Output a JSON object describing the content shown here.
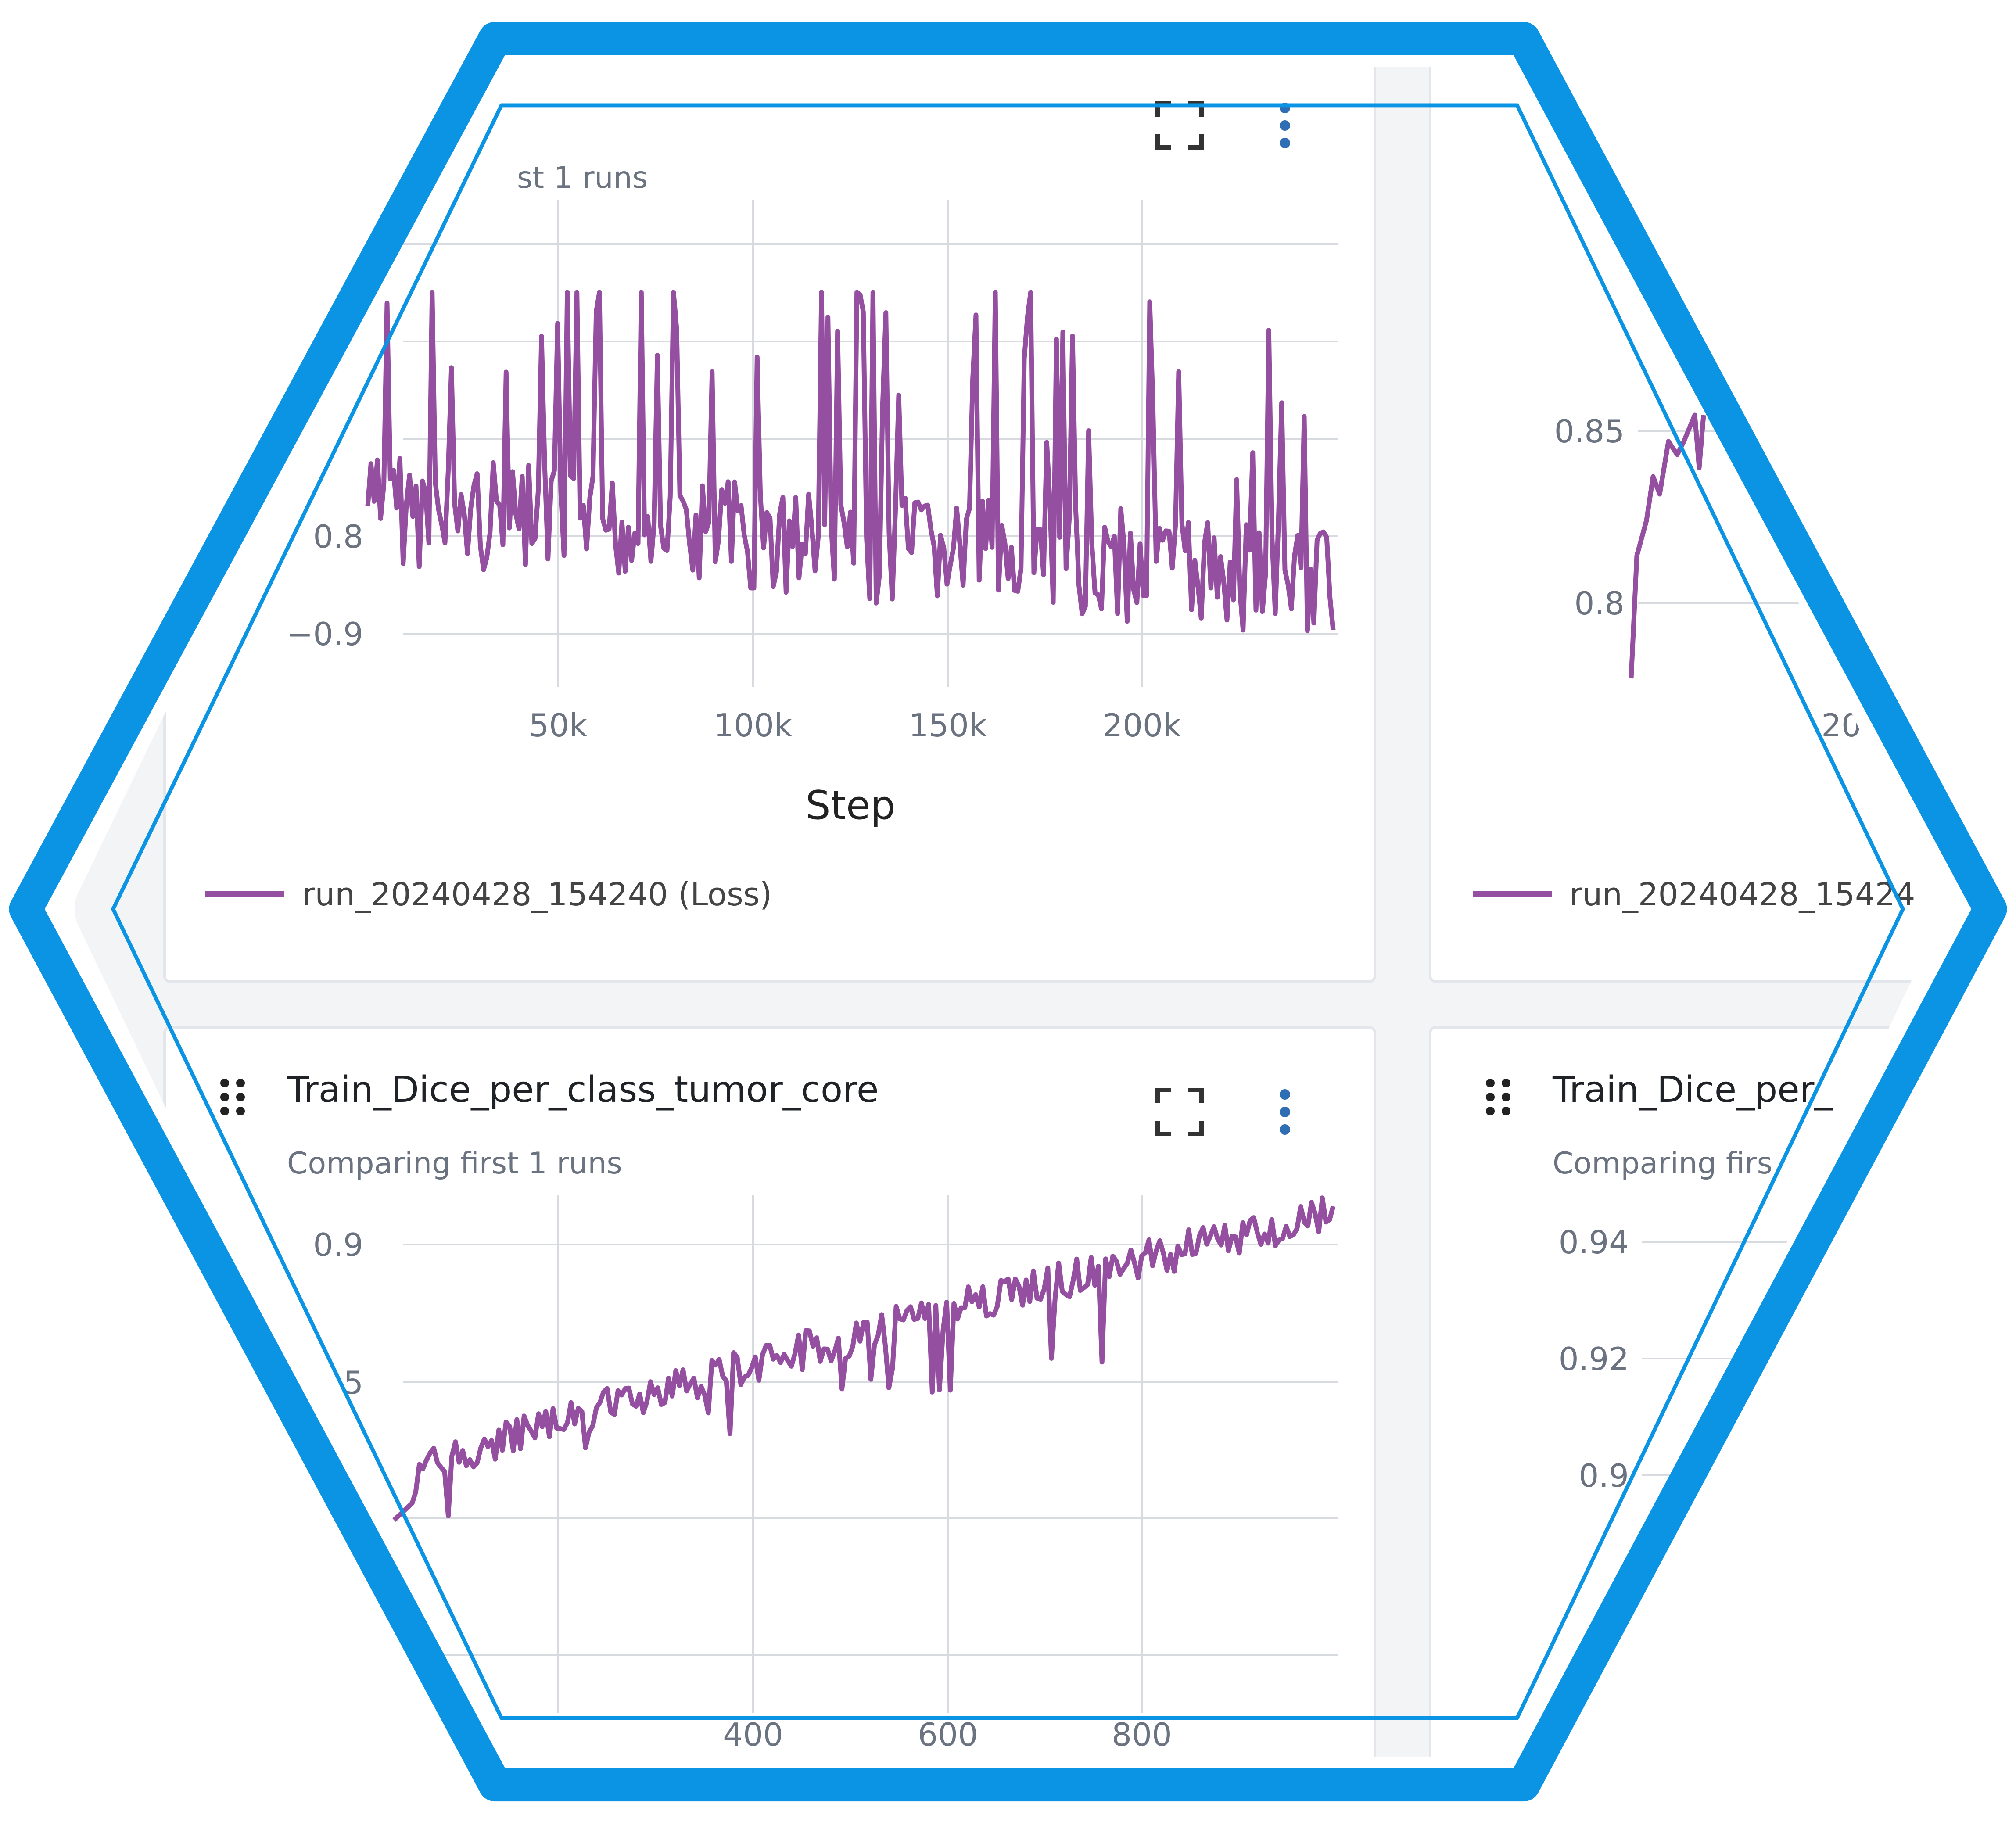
{
  "colors": {
    "accent": "#0a94e3",
    "series": "#944fa1",
    "grid": "#d7dbe0",
    "bg": "#f3f4f6"
  },
  "icons": {
    "drag": "drag-handle-icon",
    "fullscreen": "fullscreen-icon",
    "more": "more-vertical-icon"
  },
  "panels": [
    {
      "id": "loss",
      "title": "",
      "subtitle": "st 1 runs",
      "legend": "run_20240428_154240 (Loss)",
      "chart_data": {
        "type": "line",
        "xlabel": "Step",
        "ylabel": "",
        "x_ticks": [
          "50k",
          "100k",
          "150k",
          "200k"
        ],
        "y_ticks": [
          "0.8",
          "−0.9"
        ],
        "series": [
          {
            "name": "run_20240428_154240 (Loss)",
            "points": []
          }
        ]
      }
    },
    {
      "id": "right-top",
      "title": "",
      "subtitle": "",
      "legend": "run_20240428_15424",
      "chart_data": {
        "type": "line",
        "xlabel": "",
        "ylabel": "",
        "x_ticks": [
          "20"
        ],
        "y_ticks": [
          "0.85",
          "0.8"
        ],
        "series": [
          {
            "name": "run_20240428_15424",
            "points": []
          }
        ]
      }
    },
    {
      "id": "tumor-core",
      "title": "Train_Dice_per_class_tumor_core",
      "subtitle": "Comparing first 1 runs",
      "legend": "",
      "chart_data": {
        "type": "line",
        "xlabel": "",
        "ylabel": "",
        "x_ticks": [
          "400",
          "600",
          "800"
        ],
        "y_ticks": [
          "0.9",
          "5"
        ],
        "series": [
          {
            "name": "",
            "points": []
          }
        ]
      }
    },
    {
      "id": "right-bottom",
      "title": "Train_Dice_per_",
      "subtitle": "Comparing firs",
      "legend": "",
      "chart_data": {
        "type": "line",
        "xlabel": "",
        "ylabel": "",
        "x_ticks": [],
        "y_ticks": [
          "0.94",
          "0.92",
          "0.9"
        ],
        "series": []
      }
    }
  ]
}
